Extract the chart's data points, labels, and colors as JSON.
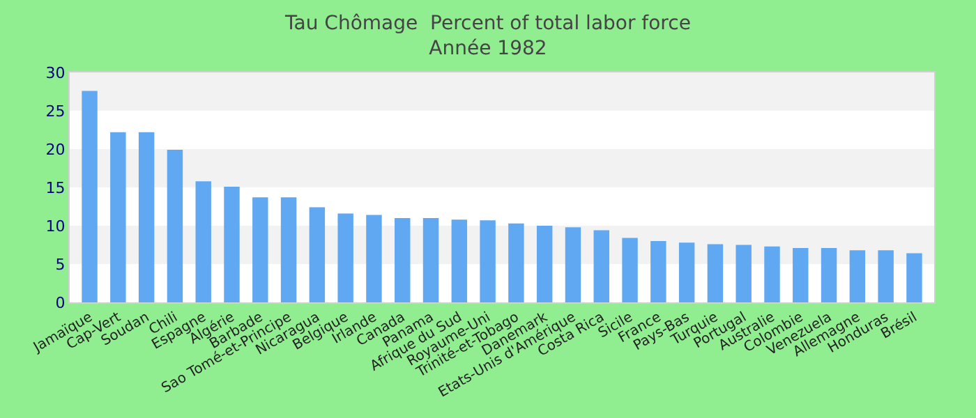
{
  "chart_data": {
    "type": "bar",
    "title": "Tau Chômage  Percent of total labor force",
    "subtitle": "Année 1982",
    "categories": [
      "Jamaïque",
      "Cap-Vert",
      "Soudan",
      "Chili",
      "Espagne",
      "Algérie",
      "Barbade",
      "Sao Tomé-et-Principe",
      "Nicaragua",
      "Belgique",
      "Irlande",
      "Canada",
      "Panama",
      "Afrique du Sud",
      "Royaume-Uni",
      "Trinité-et-Tobago",
      "Danemark",
      "Etats-Unis d'Amérique",
      "Costa Rica",
      "Sicile",
      "France",
      "Pays-Bas",
      "Turquie",
      "Portugal",
      "Australie",
      "Colombie",
      "Venezuela",
      "Allemagne",
      "Honduras",
      "Brésil"
    ],
    "values": [
      27.6,
      22.2,
      22.2,
      19.9,
      15.8,
      15.1,
      13.7,
      13.7,
      12.4,
      11.6,
      11.4,
      11.0,
      11.0,
      10.8,
      10.7,
      10.3,
      10.0,
      9.8,
      9.4,
      8.4,
      8.0,
      7.8,
      7.6,
      7.5,
      7.3,
      7.1,
      7.1,
      6.8,
      6.8,
      6.4
    ],
    "color": "#61a8f2",
    "ylim": [
      0,
      30
    ],
    "yticks": [
      0,
      5,
      10,
      15,
      20,
      25,
      30
    ],
    "bands": [
      {
        "axis": "y",
        "from": 5,
        "to": 10,
        "color": "#f2f2f2"
      },
      {
        "axis": "y",
        "from": 15,
        "to": 20,
        "color": "#f2f2f2"
      },
      {
        "axis": "y",
        "from": 25,
        "to": 30,
        "color": "#f2f2f2"
      }
    ],
    "grid": false
  }
}
